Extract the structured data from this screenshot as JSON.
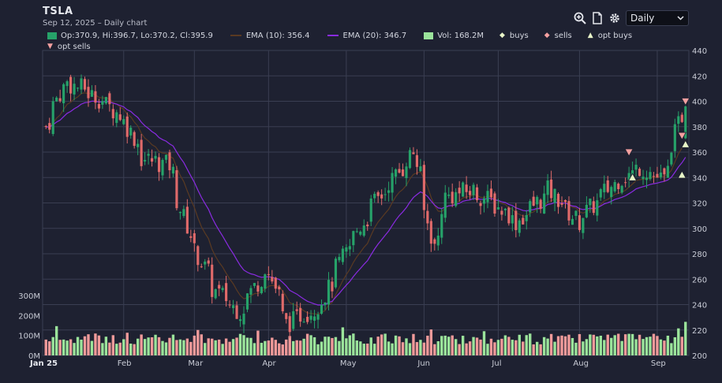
{
  "header": {
    "symbol": "TSLA",
    "subtitle": "Sep 12, 2025 – Daily chart"
  },
  "toolbar": {
    "interval": "Daily"
  },
  "legend": {
    "ohlc": "Op:370.9, Hi:396.7, Lo:370.2, Cl:395.9",
    "ema10": "EMA (10): 356.4",
    "ema20": "EMA (20): 346.7",
    "volume": "Vol: 168.2M",
    "buys": "buys",
    "sells": "sells",
    "opt_buys": "opt buys",
    "opt_sells": "opt sells"
  },
  "colors": {
    "up": "#26a269",
    "down": "#e06a6a",
    "vol_up": "#9be49b",
    "vol_down": "#f09a9a",
    "ema10": "#5a3a22",
    "ema20": "#8a2be2",
    "grid": "#3a3e52",
    "marker_up": "#e8f5c8",
    "marker_down": "#f4a0a0"
  },
  "chart_data": {
    "type": "candlestick",
    "title": "TSLA",
    "interval": "Daily",
    "price_axis": {
      "ticks": [
        200,
        220,
        240,
        260,
        280,
        300,
        320,
        340,
        360,
        380,
        400,
        420,
        440
      ],
      "range": [
        200,
        440
      ]
    },
    "volume_axis": {
      "ticks": [
        "0M",
        "100M",
        "200M",
        "300M"
      ],
      "range": [
        0,
        300
      ]
    },
    "x_axis": {
      "ticks": [
        "Jan 25",
        "Feb",
        "Mar",
        "Apr",
        "May",
        "Jun",
        "Jul",
        "Aug",
        "Sep"
      ]
    },
    "last_bar": {
      "open": 370.9,
      "high": 396.7,
      "low": 370.2,
      "close": 395.9,
      "volume_m": 168.2,
      "ema10": 356.4,
      "ema20": 346.7
    },
    "key_closes": [
      {
        "date": "2025-01-02",
        "close": 380
      },
      {
        "date": "2025-01-10",
        "close": 415
      },
      {
        "date": "2025-01-17",
        "close": 410
      },
      {
        "date": "2025-01-27",
        "close": 397
      },
      {
        "date": "2025-02-03",
        "close": 384
      },
      {
        "date": "2025-02-10",
        "close": 355
      },
      {
        "date": "2025-02-20",
        "close": 350
      },
      {
        "date": "2025-02-28",
        "close": 295
      },
      {
        "date": "2025-03-10",
        "close": 252
      },
      {
        "date": "2025-03-20",
        "close": 235
      },
      {
        "date": "2025-03-31",
        "close": 270
      },
      {
        "date": "2025-04-08",
        "close": 225
      },
      {
        "date": "2025-04-21",
        "close": 240
      },
      {
        "date": "2025-05-02",
        "close": 285
      },
      {
        "date": "2025-05-12",
        "close": 318
      },
      {
        "date": "2025-05-28",
        "close": 360
      },
      {
        "date": "2025-06-05",
        "close": 285
      },
      {
        "date": "2025-06-10",
        "close": 325
      },
      {
        "date": "2025-06-20",
        "close": 330
      },
      {
        "date": "2025-06-30",
        "close": 318
      },
      {
        "date": "2025-07-08",
        "close": 305
      },
      {
        "date": "2025-07-21",
        "close": 330
      },
      {
        "date": "2025-08-01",
        "close": 305
      },
      {
        "date": "2025-08-15",
        "close": 335
      },
      {
        "date": "2025-08-26",
        "close": 348
      },
      {
        "date": "2025-09-04",
        "close": 338
      },
      {
        "date": "2025-09-12",
        "close": 395.9
      }
    ],
    "markers": [
      {
        "type": "opt sells",
        "date": "2025-08-21",
        "price": 360
      },
      {
        "type": "opt buys",
        "date": "2025-08-22",
        "price": 340
      },
      {
        "type": "opt sells",
        "date": "2025-09-11",
        "price": 373
      },
      {
        "type": "opt buys",
        "date": "2025-09-11",
        "price": 342
      },
      {
        "type": "opt buys",
        "date": "2025-09-12",
        "price": 366
      },
      {
        "type": "opt sells",
        "date": "2025-09-12",
        "price": 400
      }
    ]
  }
}
